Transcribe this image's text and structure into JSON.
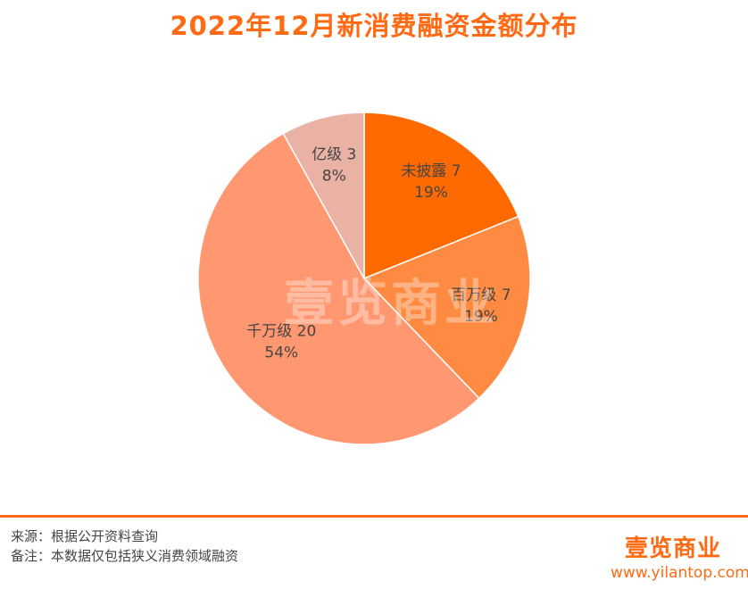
{
  "title": "2022年12月新消费融资金额分布",
  "watermark": "壹览商业",
  "footer": {
    "source": "来源：根据公开资料查询",
    "note": "备注：本数据仅包括狭义消费领域融资",
    "brand": "壹览商业",
    "url": "www.yilantop.com"
  },
  "chart_data": {
    "type": "pie",
    "title": "2022年12月新消费融资金额分布",
    "slices": [
      {
        "label": "未披露",
        "value": 7,
        "percent": "19%",
        "color": "#ff6a00"
      },
      {
        "label": "百万级",
        "value": 7,
        "percent": "19%",
        "color": "#ff8a42"
      },
      {
        "label": "千万级",
        "value": 20,
        "percent": "54%",
        "color": "#ff9870"
      },
      {
        "label": "亿级",
        "value": 3,
        "percent": "8%",
        "color": "#e9b2a4"
      }
    ]
  }
}
